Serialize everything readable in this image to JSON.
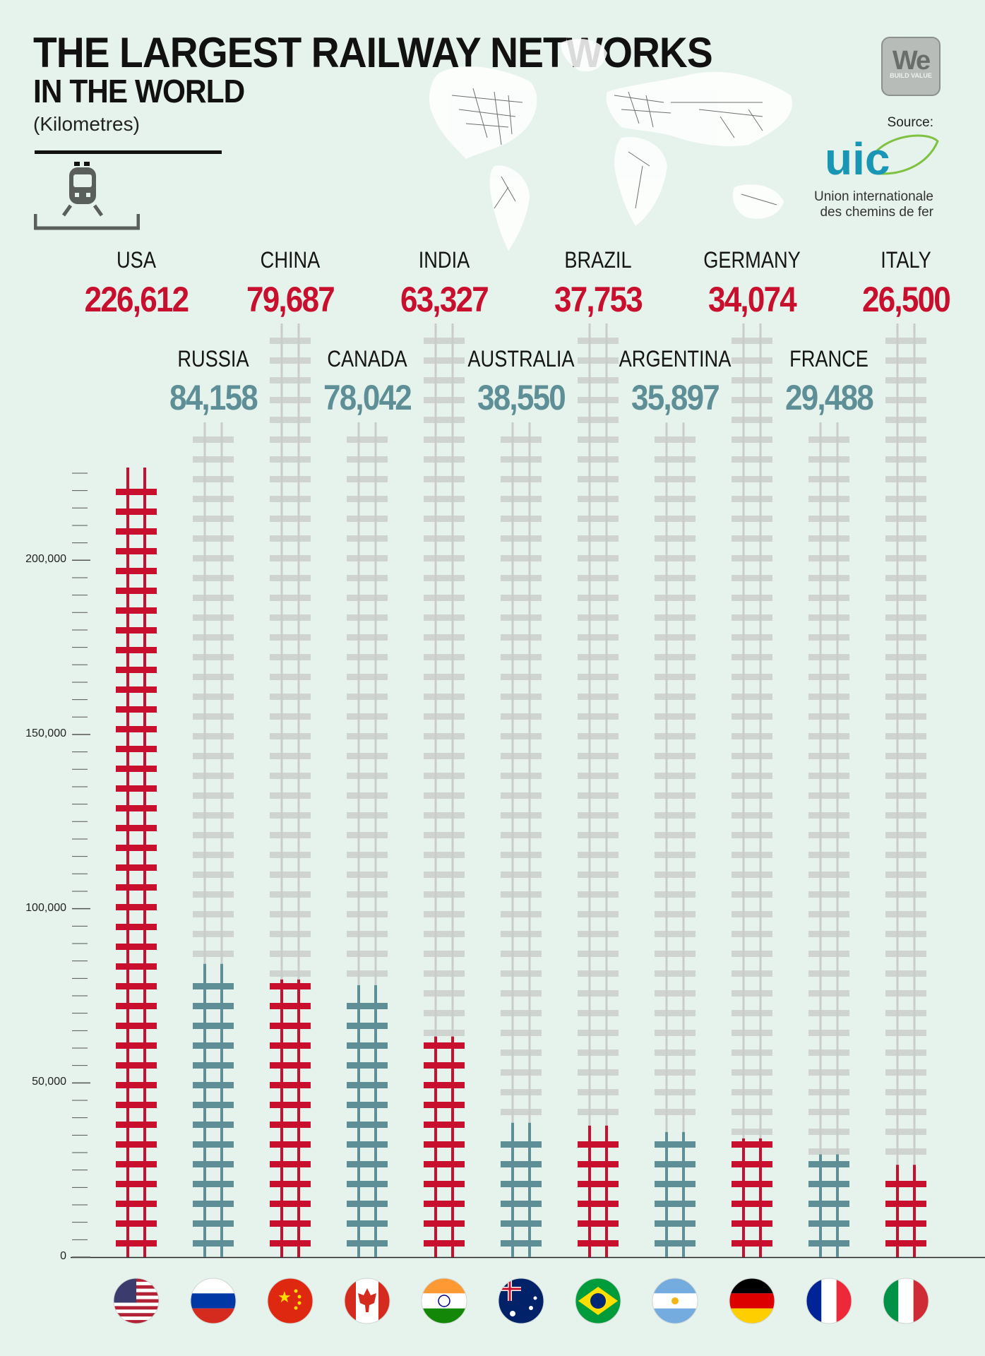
{
  "header": {
    "title_line1": "THE LARGEST RAILWAY NETWORKS",
    "title_line2": "IN THE WORLD",
    "unit": "(Kilometres)"
  },
  "branding": {
    "logo_text": "We",
    "logo_subtext": "BUILD VALUE",
    "source_label": "Source:",
    "source_logo_text": "uic",
    "source_name_line1": "Union internationale",
    "source_name_line2": "des chemins de fer"
  },
  "colors": {
    "background": "#e6f3ec",
    "red": "#c8102e",
    "teal": "#5e8f96",
    "ghost_track": "#c9ccca"
  },
  "chart_data": {
    "type": "bar",
    "categories": [
      "USA",
      "RUSSIA",
      "CHINA",
      "CANADA",
      "INDIA",
      "AUSTRALIA",
      "BRAZIL",
      "ARGENTINA",
      "GERMANY",
      "FRANCE",
      "ITALY"
    ],
    "values": [
      226612,
      84158,
      79687,
      78042,
      63327,
      38550,
      37753,
      35897,
      34074,
      29488,
      26500
    ],
    "value_labels": [
      "226,612",
      "84,158",
      "79,687",
      "78,042",
      "63,327",
      "38,550",
      "37,753",
      "35,897",
      "34,074",
      "29,488",
      "26,500"
    ],
    "bar_colors": [
      "red",
      "teal",
      "red",
      "teal",
      "red",
      "teal",
      "red",
      "teal",
      "red",
      "teal",
      "red"
    ],
    "flag_icons": [
      "usa-flag-icon",
      "russia-flag-icon",
      "china-flag-icon",
      "canada-flag-icon",
      "india-flag-icon",
      "australia-flag-icon",
      "brazil-flag-icon",
      "argentina-flag-icon",
      "germany-flag-icon",
      "france-flag-icon",
      "italy-flag-icon"
    ],
    "y_ticks": [
      0,
      50000,
      100000,
      150000,
      200000
    ],
    "y_tick_labels": [
      "0",
      "50,000",
      "100,000",
      "150,000",
      "200,000"
    ],
    "ylim": [
      0,
      226612
    ],
    "grid": false,
    "legend": "none"
  }
}
